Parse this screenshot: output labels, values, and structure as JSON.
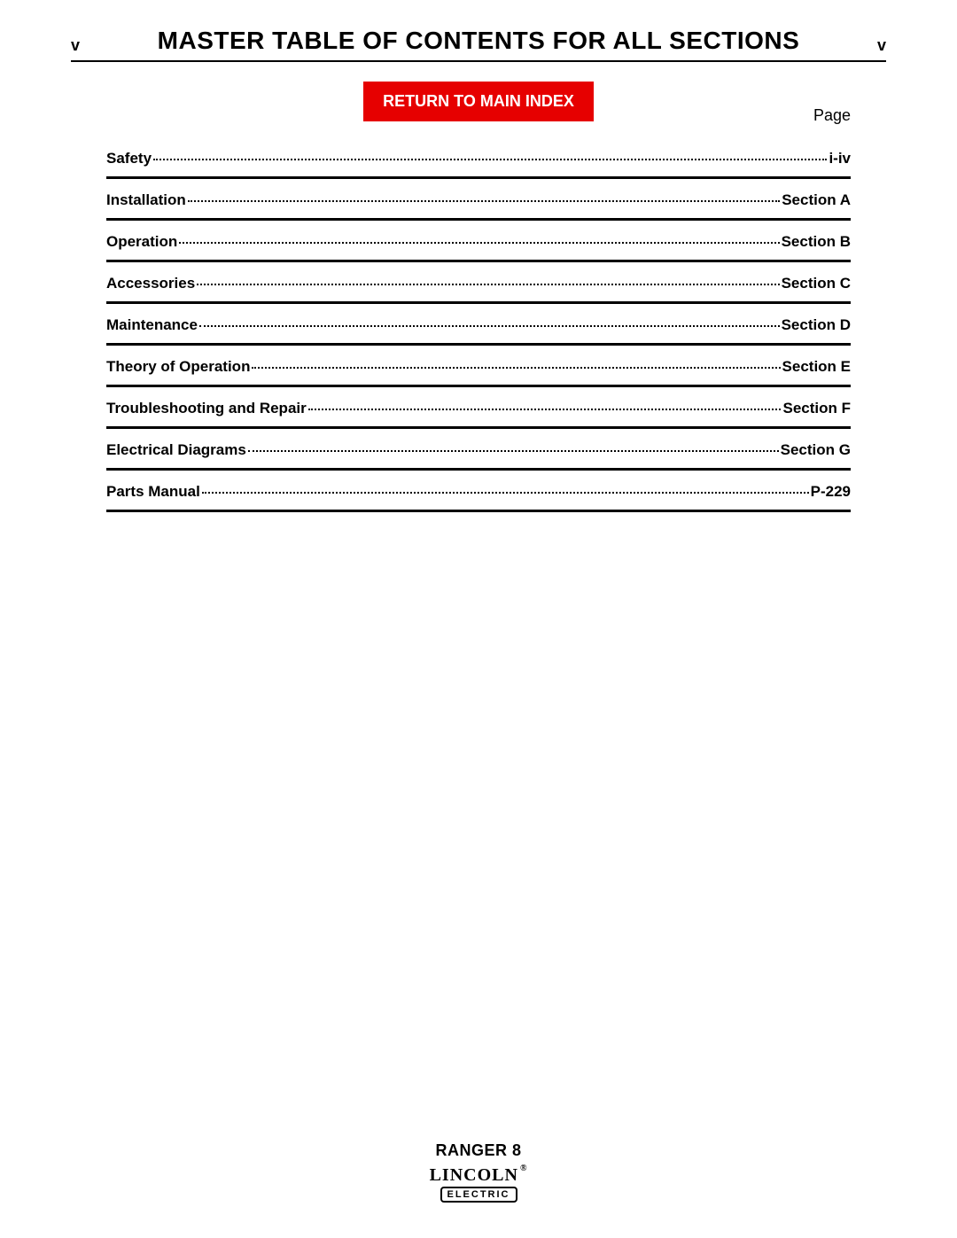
{
  "header": {
    "left_marker": "v",
    "right_marker": "v",
    "title": "MASTER TABLE OF CONTENTS FOR ALL SECTIONS"
  },
  "return_button": {
    "label": "RETURN TO MAIN INDEX",
    "bg_color": "#e60000",
    "text_color": "#ffffff"
  },
  "page_label": "Page",
  "toc": [
    {
      "title": "Safety",
      "page": "i-iv"
    },
    {
      "title": "Installation",
      "page": "Section A"
    },
    {
      "title": "Operation",
      "page": "Section B"
    },
    {
      "title": "Accessories",
      "page": "Section C"
    },
    {
      "title": "Maintenance",
      "page": "Section D"
    },
    {
      "title": "Theory of Operation",
      "page": "Section E"
    },
    {
      "title": "Troubleshooting and Repair",
      "page": "Section F"
    },
    {
      "title": "Electrical Diagrams",
      "page": "Section G"
    },
    {
      "title": "Parts Manual",
      "page": "P-229"
    }
  ],
  "footer": {
    "product": "RANGER 8",
    "logo_top": "LINCOLN",
    "logo_reg": "®",
    "logo_bottom": "ELECTRIC"
  },
  "style": {
    "title_fontsize": 28,
    "body_fontsize": 17,
    "rule_color": "#000000",
    "background": "#ffffff"
  }
}
